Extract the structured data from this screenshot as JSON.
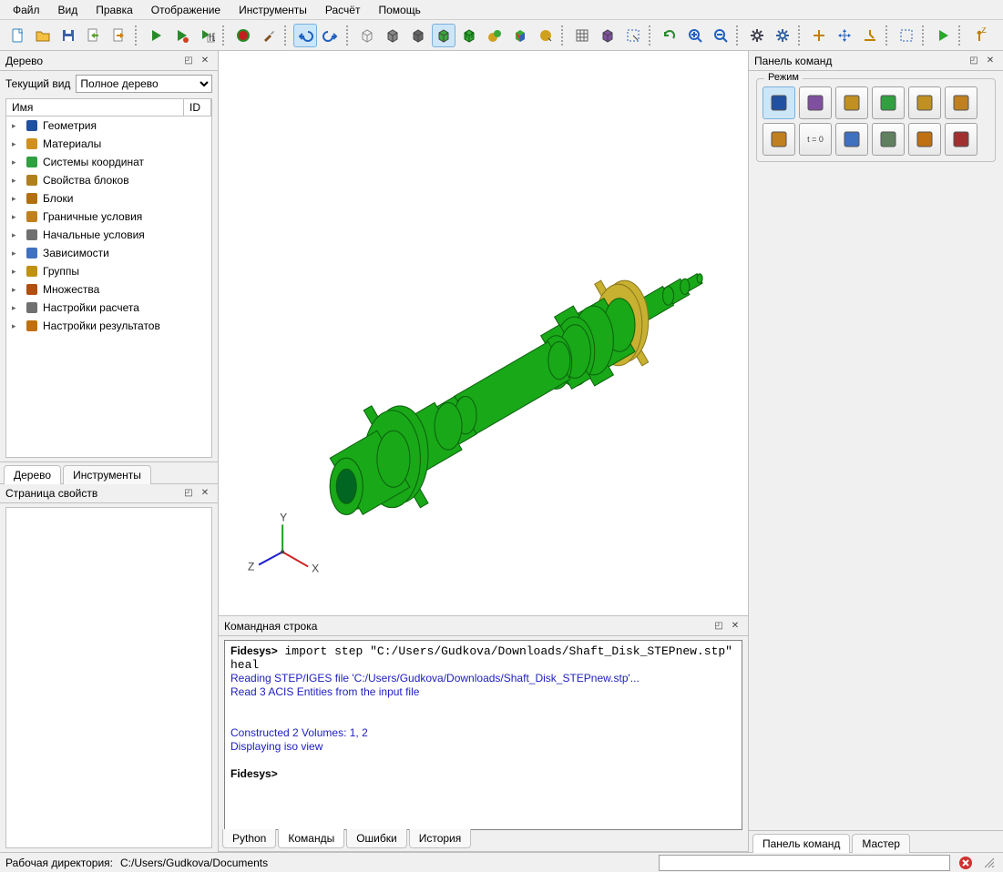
{
  "menu": [
    "Файл",
    "Вид",
    "Правка",
    "Отображение",
    "Инструменты",
    "Расчёт",
    "Помощь"
  ],
  "toolbar": {
    "groups": [
      {
        "items": [
          {
            "name": "new-file-icon",
            "kind": "doc",
            "color": "#fff",
            "stroke": "#3080c0"
          },
          {
            "name": "open-icon",
            "kind": "folder",
            "color": "#f3c040"
          },
          {
            "name": "save-icon",
            "kind": "floppy",
            "color": "#3a60a8"
          },
          {
            "name": "export-icon",
            "kind": "doc-arrow",
            "color": "#5aa02a"
          },
          {
            "name": "import-icon",
            "kind": "doc-arrow",
            "color": "#d08000",
            "flip": true
          }
        ]
      },
      {
        "items": [
          {
            "name": "run-icon",
            "kind": "play",
            "color": "#2a8a2a"
          },
          {
            "name": "run-script-icon",
            "kind": "play",
            "color": "#2a8a2a",
            "dot": true
          },
          {
            "name": "run-id-icon",
            "kind": "play-id",
            "color": "#2a8a2a"
          }
        ]
      },
      {
        "items": [
          {
            "name": "record-icon",
            "kind": "circle",
            "color": "#c02020",
            "stroke": "#2a8a2a"
          },
          {
            "name": "brush-icon",
            "kind": "brush",
            "color": "#805020"
          }
        ]
      },
      {
        "items": [
          {
            "name": "undo-icon",
            "kind": "undo",
            "color": "#2060c0",
            "active": true
          },
          {
            "name": "redo-icon",
            "kind": "redo",
            "color": "#2060c0"
          }
        ]
      },
      {
        "items": [
          {
            "name": "wire-cube-icon",
            "kind": "wcube",
            "color": "#888"
          },
          {
            "name": "shade-cube-icon",
            "kind": "scube",
            "color": "#888"
          },
          {
            "name": "solid-cube-icon",
            "kind": "scube",
            "color": "#666"
          },
          {
            "name": "green-cube-icon",
            "kind": "scube",
            "color": "#3aa83a",
            "active": true
          },
          {
            "name": "green-wire-cube-icon",
            "kind": "gwcube",
            "color": "#3aa83a"
          },
          {
            "name": "spheres-icon",
            "kind": "spheres",
            "color": "#d0a020"
          },
          {
            "name": "color-cube-icon",
            "kind": "ccube",
            "color": "#3aa83a"
          },
          {
            "name": "sphere-cursor-icon",
            "kind": "sphere",
            "color": "#d0a020"
          }
        ]
      },
      {
        "items": [
          {
            "name": "grid-icon",
            "kind": "grid",
            "color": "#606060"
          },
          {
            "name": "purple-cube-icon",
            "kind": "scube",
            "color": "#8050a0"
          },
          {
            "name": "select-icon",
            "kind": "select",
            "color": "#2060c0"
          }
        ]
      },
      {
        "items": [
          {
            "name": "refresh-icon",
            "kind": "refresh",
            "color": "#2a8a2a"
          },
          {
            "name": "zoom-in-icon",
            "kind": "zoom",
            "color": "#2060c0",
            "plus": true
          },
          {
            "name": "zoom-out-icon",
            "kind": "zoom",
            "color": "#2060c0"
          }
        ]
      },
      {
        "items": [
          {
            "name": "gear-dark-icon",
            "kind": "gear",
            "color": "#404050"
          },
          {
            "name": "gear-blue-icon",
            "kind": "gear",
            "color": "#3060a0"
          }
        ]
      },
      {
        "items": [
          {
            "name": "center-icon",
            "kind": "plus",
            "color": "#c08000"
          },
          {
            "name": "move-icon",
            "kind": "arrows",
            "color": "#2060c0"
          },
          {
            "name": "snap-icon",
            "kind": "snap",
            "color": "#c08000"
          }
        ]
      },
      {
        "items": [
          {
            "name": "box-select-icon",
            "kind": "boxsel",
            "color": "#2060c0"
          }
        ]
      },
      {
        "items": [
          {
            "name": "play-icon",
            "kind": "play",
            "color": "#2aa82a"
          }
        ]
      },
      {
        "items": [
          {
            "name": "axis-z-icon",
            "kind": "axis",
            "color": "#c08000"
          }
        ]
      }
    ]
  },
  "tree_panel": {
    "title": "Дерево",
    "view_label": "Текущий вид",
    "view_value": "Полное дерево",
    "col_name": "Имя",
    "col_id": "ID",
    "items": [
      {
        "label": "Геометрия",
        "icon": "geom",
        "color": "#2050a0"
      },
      {
        "label": "Материалы",
        "icon": "mat",
        "color": "#d09020"
      },
      {
        "label": "Системы координат",
        "icon": "coord",
        "color": "#30a040"
      },
      {
        "label": "Свойства блоков",
        "icon": "props",
        "color": "#b08020"
      },
      {
        "label": "Блоки",
        "icon": "block",
        "color": "#b07010"
      },
      {
        "label": "Граничные условия",
        "icon": "bc",
        "color": "#c08020"
      },
      {
        "label": "Начальные условия",
        "icon": "ic",
        "color": "#707070"
      },
      {
        "label": "Зависимости",
        "icon": "dep",
        "color": "#4070c0"
      },
      {
        "label": "Группы",
        "icon": "grp",
        "color": "#c09010"
      },
      {
        "label": "Множества",
        "icon": "set",
        "color": "#b05010"
      },
      {
        "label": "Настройки расчета",
        "icon": "cog",
        "color": "#707070"
      },
      {
        "label": "Настройки результатов",
        "icon": "res",
        "color": "#c07010"
      }
    ],
    "tabs": [
      "Дерево",
      "Инструменты"
    ]
  },
  "props_panel": {
    "title": "Страница свойств"
  },
  "viewport": {
    "shaft_color": "#18a818",
    "shaft_edge": "#0c600c",
    "disk_color": "#c8b030",
    "disk_edge": "#8a7820",
    "axes": {
      "x": "#d02020",
      "y": "#20a020",
      "z": "#2020d0",
      "labels": [
        "X",
        "Y",
        "Z"
      ]
    }
  },
  "cmd_panel": {
    "title": "Командная строка",
    "prompt": "Fidesys>",
    "lines": [
      {
        "t": "prompt",
        "text": " import step \"C:/Users/Gudkova/Downloads/Shaft_Disk_STEPnew.stp\" heal"
      },
      {
        "t": "blue",
        "text": "Reading STEP/IGES file 'C:/Users/Gudkova/Downloads/Shaft_Disk_STEPnew.stp'..."
      },
      {
        "t": "blue",
        "text": "Read 3 ACIS Entities from the input file"
      },
      {
        "t": "blank"
      },
      {
        "t": "blank"
      },
      {
        "t": "blue",
        "text": "Constructed 2 Volumes: 1, 2"
      },
      {
        "t": "blue",
        "text": "Displaying iso view"
      },
      {
        "t": "blank"
      },
      {
        "t": "prompt",
        "text": ""
      }
    ],
    "tabs": [
      "Python",
      "Команды",
      "Ошибки",
      "История"
    ]
  },
  "right_panel": {
    "title": "Панель команд",
    "mode_legend": "Режим",
    "buttons": [
      {
        "name": "mode-geometry-icon",
        "color": "#2050a0",
        "active": true
      },
      {
        "name": "mode-mesh-icon",
        "color": "#8050a0"
      },
      {
        "name": "mode-material-icon",
        "color": "#c09020"
      },
      {
        "name": "mode-coords-icon",
        "color": "#30a040"
      },
      {
        "name": "mode-block-icon",
        "color": "#c09020"
      },
      {
        "name": "mode-grid-icon",
        "color": "#c08020"
      },
      {
        "name": "mode-bc-icon",
        "color": "#c08020"
      },
      {
        "name": "mode-t0-icon",
        "color": "#707070",
        "text": "t = 0"
      },
      {
        "name": "mode-curve-icon",
        "color": "#4070c0"
      },
      {
        "name": "mode-table-icon",
        "color": "#608060"
      },
      {
        "name": "mode-wave-icon",
        "color": "#c07010"
      },
      {
        "name": "mode-find-icon",
        "color": "#a03030"
      }
    ],
    "tabs": [
      "Панель команд",
      "Мастер"
    ]
  },
  "status": {
    "label": "Рабочая директория:",
    "path": "C:/Users/Gudkova/Documents"
  }
}
